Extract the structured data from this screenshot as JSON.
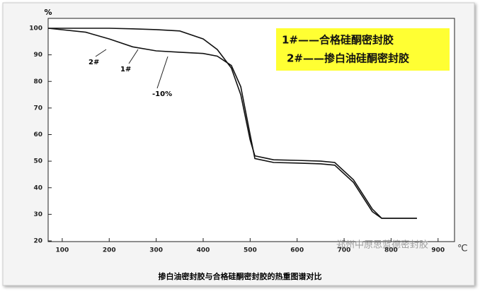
{
  "chart_data": {
    "type": "line",
    "caption": "掺白油密封胶与合格硅酮密封胶的热重图谱对比",
    "y_label": "%",
    "x_label": "℃",
    "watermark": "郑州中原思蓝德密封胶",
    "annotations": [
      "2#",
      "1#",
      "-10%"
    ],
    "x": [
      70,
      150,
      200,
      250,
      300,
      350,
      400,
      430,
      460,
      480,
      500,
      510,
      550,
      600,
      650,
      680,
      720,
      760,
      780,
      820,
      855
    ],
    "series": [
      {
        "name": "1#——合格硅酮密封胶",
        "color": "#111111",
        "values": [
          100,
          100,
          100,
          99.8,
          99.5,
          99,
          96,
          92,
          85,
          75,
          58,
          52,
          50.5,
          50.3,
          50,
          49.5,
          43,
          32,
          28.5,
          28.5,
          28.5
        ]
      },
      {
        "name": "2#——掺白油硅酮密封胶",
        "color": "#111111",
        "values": [
          100,
          98.5,
          96,
          93,
          91.5,
          91,
          90.5,
          89.5,
          86,
          78,
          60,
          51,
          49.5,
          49.3,
          49,
          48.5,
          42,
          31,
          28.5,
          28.5,
          28.5
        ]
      }
    ],
    "xlim": [
      70,
      935
    ],
    "xticks": [
      100,
      200,
      300,
      400,
      500,
      600,
      700,
      800,
      900
    ],
    "ylim": [
      20,
      100
    ],
    "yticks": [
      20,
      30,
      40,
      50,
      60,
      70,
      80,
      90,
      100
    ],
    "legend": {
      "color": "#ffff33"
    }
  }
}
